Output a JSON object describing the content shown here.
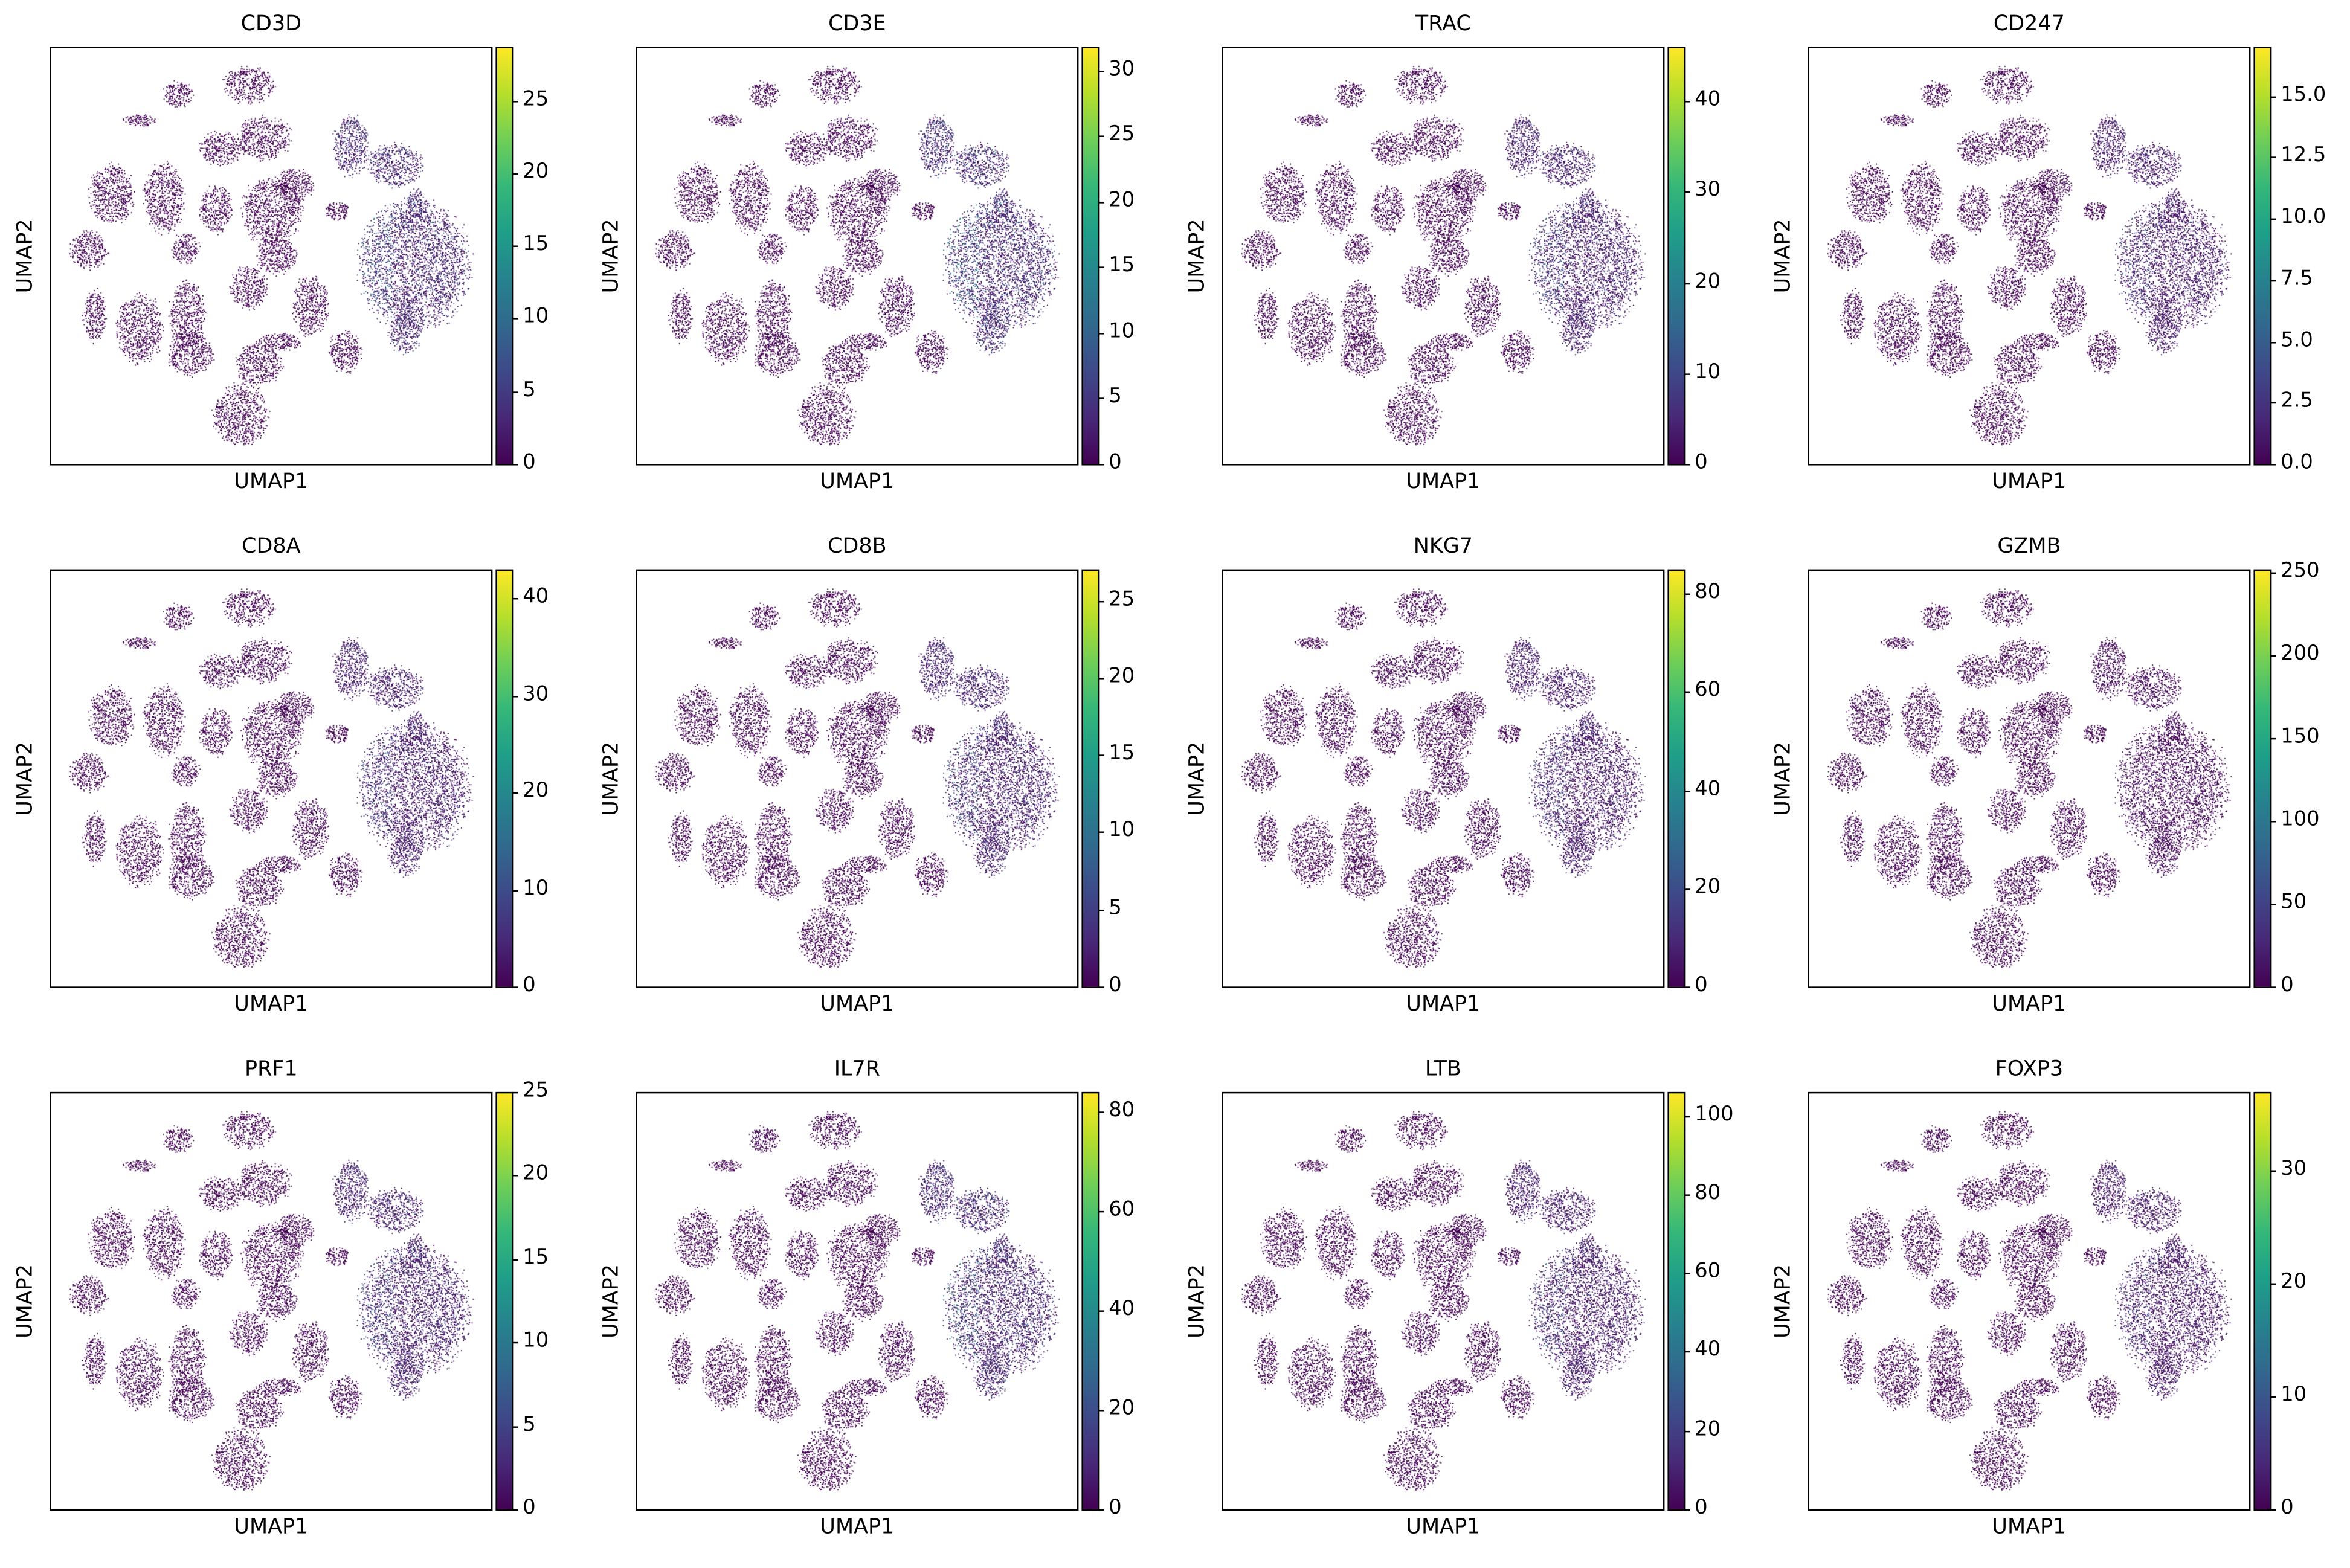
{
  "chart_data": [
    {
      "type": "scatter",
      "title": "CD3D",
      "xlabel": "UMAP1",
      "ylabel": "UMAP2",
      "colormap": "viridis",
      "colorbar": {
        "range": [
          0,
          28.7
        ],
        "ticks": [
          0,
          5,
          10,
          15,
          20,
          25
        ],
        "tick_labels": [
          "0",
          "5",
          "10",
          "15",
          "20",
          "25"
        ]
      }
    },
    {
      "type": "scatter",
      "title": "CD3E",
      "xlabel": "UMAP1",
      "ylabel": "UMAP2",
      "colormap": "viridis",
      "colorbar": {
        "range": [
          0,
          31.8
        ],
        "ticks": [
          0,
          5,
          10,
          15,
          20,
          25,
          30
        ],
        "tick_labels": [
          "0",
          "5",
          "10",
          "15",
          "20",
          "25",
          "30"
        ]
      }
    },
    {
      "type": "scatter",
      "title": "TRAC",
      "xlabel": "UMAP1",
      "ylabel": "UMAP2",
      "colormap": "viridis",
      "colorbar": {
        "range": [
          0,
          46
        ],
        "ticks": [
          0,
          10,
          20,
          30,
          40
        ],
        "tick_labels": [
          "0",
          "10",
          "20",
          "30",
          "40"
        ]
      }
    },
    {
      "type": "scatter",
      "title": "CD247",
      "xlabel": "UMAP1",
      "ylabel": "UMAP2",
      "colormap": "viridis",
      "colorbar": {
        "range": [
          0,
          17
        ],
        "ticks": [
          0,
          2.5,
          5,
          7.5,
          10,
          12.5,
          15
        ],
        "tick_labels": [
          "0.0",
          "2.5",
          "5.0",
          "7.5",
          "10.0",
          "12.5",
          "15.0"
        ]
      }
    },
    {
      "type": "scatter",
      "title": "CD8A",
      "xlabel": "UMAP1",
      "ylabel": "UMAP2",
      "colormap": "viridis",
      "colorbar": {
        "range": [
          0,
          43
        ],
        "ticks": [
          0,
          10,
          20,
          30,
          40
        ],
        "tick_labels": [
          "0",
          "10",
          "20",
          "30",
          "40"
        ]
      }
    },
    {
      "type": "scatter",
      "title": "CD8B",
      "xlabel": "UMAP1",
      "ylabel": "UMAP2",
      "colormap": "viridis",
      "colorbar": {
        "range": [
          0,
          27
        ],
        "ticks": [
          0,
          5,
          10,
          15,
          20,
          25
        ],
        "tick_labels": [
          "0",
          "5",
          "10",
          "15",
          "20",
          "25"
        ]
      }
    },
    {
      "type": "scatter",
      "title": "NKG7",
      "xlabel": "UMAP1",
      "ylabel": "UMAP2",
      "colormap": "viridis",
      "colorbar": {
        "range": [
          0,
          85
        ],
        "ticks": [
          0,
          20,
          40,
          60,
          80
        ],
        "tick_labels": [
          "0",
          "20",
          "40",
          "60",
          "80"
        ]
      }
    },
    {
      "type": "scatter",
      "title": "GZMB",
      "xlabel": "UMAP1",
      "ylabel": "UMAP2",
      "colormap": "viridis",
      "colorbar": {
        "range": [
          0,
          252
        ],
        "ticks": [
          0,
          50,
          100,
          150,
          200,
          250
        ],
        "tick_labels": [
          "0",
          "50",
          "100",
          "150",
          "200",
          "250"
        ]
      }
    },
    {
      "type": "scatter",
      "title": "PRF1",
      "xlabel": "UMAP1",
      "ylabel": "UMAP2",
      "colormap": "viridis",
      "colorbar": {
        "range": [
          0,
          25
        ],
        "ticks": [
          0,
          5,
          10,
          15,
          20,
          25
        ],
        "tick_labels": [
          "0",
          "5",
          "10",
          "15",
          "20",
          "25"
        ]
      }
    },
    {
      "type": "scatter",
      "title": "IL7R",
      "xlabel": "UMAP1",
      "ylabel": "UMAP2",
      "colormap": "viridis",
      "colorbar": {
        "range": [
          0,
          84
        ],
        "ticks": [
          0,
          20,
          40,
          60,
          80
        ],
        "tick_labels": [
          "0",
          "20",
          "40",
          "60",
          "80"
        ]
      }
    },
    {
      "type": "scatter",
      "title": "LTB",
      "xlabel": "UMAP1",
      "ylabel": "UMAP2",
      "colormap": "viridis",
      "colorbar": {
        "range": [
          0,
          106
        ],
        "ticks": [
          0,
          20,
          40,
          60,
          80,
          100
        ],
        "tick_labels": [
          "0",
          "20",
          "40",
          "60",
          "80",
          "100"
        ]
      }
    },
    {
      "type": "scatter",
      "title": "FOXP3",
      "xlabel": "UMAP1",
      "ylabel": "UMAP2",
      "colormap": "viridis",
      "colorbar": {
        "range": [
          0,
          37
        ],
        "ticks": [
          0,
          10,
          20,
          30
        ],
        "tick_labels": [
          "0",
          "10",
          "20",
          "30"
        ]
      }
    }
  ]
}
